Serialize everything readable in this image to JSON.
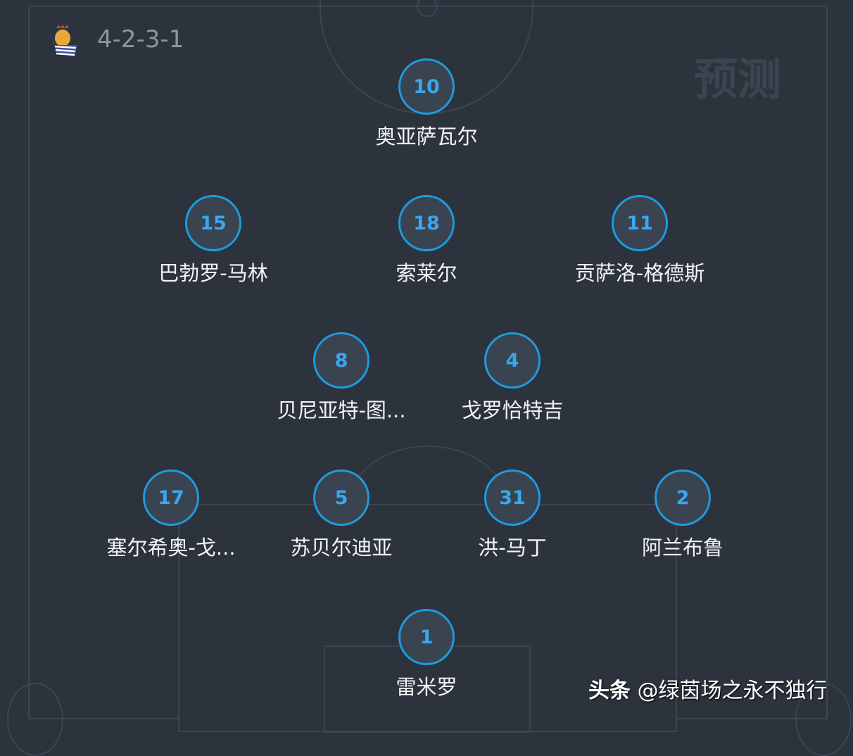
{
  "header": {
    "formation": "4-2-3-1",
    "team_badge": "real-sociedad-crest"
  },
  "watermark": "预测",
  "credit": {
    "platform": "头条",
    "handle": "@绿茵场之永不独行"
  },
  "colors": {
    "background": "#2c333d",
    "ring": "#1e9be0",
    "number": "#3aa6f0"
  },
  "players": [
    {
      "number": "10",
      "name": "奥亚萨瓦尔"
    },
    {
      "number": "15",
      "name": "巴勃罗-马林"
    },
    {
      "number": "18",
      "name": "索莱尔"
    },
    {
      "number": "11",
      "name": "贡萨洛-格德斯"
    },
    {
      "number": "8",
      "name": "贝尼亚特-图..."
    },
    {
      "number": "4",
      "name": "戈罗恰特吉"
    },
    {
      "number": "17",
      "name": "塞尔希奥-戈..."
    },
    {
      "number": "5",
      "name": "苏贝尔迪亚"
    },
    {
      "number": "31",
      "name": "洪-马丁"
    },
    {
      "number": "2",
      "name": "阿兰布鲁"
    },
    {
      "number": "1",
      "name": "雷米罗"
    }
  ]
}
